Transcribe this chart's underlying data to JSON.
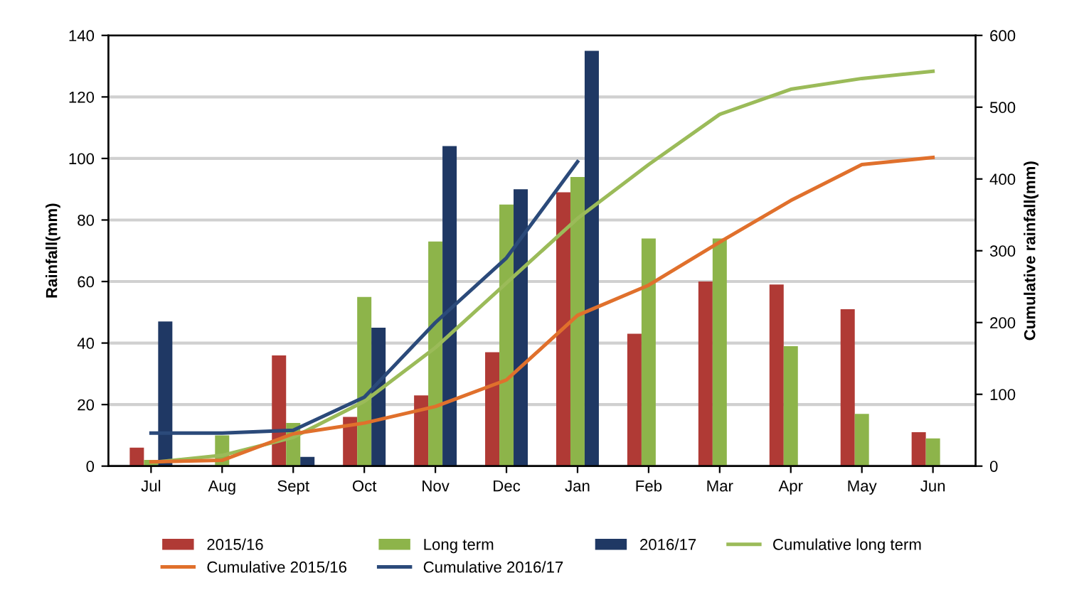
{
  "chart_data": {
    "type": "bar",
    "xlabel": null,
    "ylabel": "Rainfall(mm)",
    "y2label": "Cumulative rainfall(mm)",
    "categories": [
      "Jul",
      "Aug",
      "Sept",
      "Oct",
      "Nov",
      "Dec",
      "Jan",
      "Feb",
      "Mar",
      "Apr",
      "May",
      "Jun"
    ],
    "series": [
      {
        "name": "2015/16",
        "color": "#b03a35",
        "values": [
          6,
          0,
          36,
          16,
          23,
          37,
          89,
          43,
          60,
          59,
          51,
          11
        ]
      },
      {
        "name": "Long term",
        "color": "#8db44a",
        "values": [
          2,
          10,
          14,
          55,
          73,
          85,
          94,
          74,
          74,
          39,
          17,
          9
        ]
      },
      {
        "name": "2016/17",
        "color": "#1f3864",
        "values": [
          47,
          0,
          3,
          45,
          104,
          90,
          135,
          null,
          null,
          null,
          null,
          null
        ]
      },
      {
        "name": "Cumulative long term",
        "type": "line",
        "axis": "y2",
        "color": "#9bbb59",
        "values": [
          5,
          15,
          40,
          90,
          165,
          255,
          345,
          420,
          490,
          525,
          540,
          550
        ]
      },
      {
        "name": "Cumulative 2015/16",
        "type": "line",
        "axis": "y2",
        "color": "#e0702c",
        "values": [
          6,
          8,
          45,
          60,
          83,
          120,
          210,
          252,
          312,
          370,
          420,
          430
        ]
      },
      {
        "name": "Cumulative 2016/17",
        "type": "line",
        "axis": "y2",
        "color": "#2b4a7a",
        "values": [
          46,
          46,
          50,
          96,
          200,
          290,
          424,
          null,
          null,
          null,
          null,
          null
        ]
      }
    ],
    "ylim": [
      0,
      140
    ],
    "yticks": [
      0,
      20,
      40,
      60,
      80,
      100,
      120,
      140
    ],
    "y2lim": [
      0,
      600
    ],
    "y2ticks": [
      0,
      100,
      200,
      300,
      400,
      500,
      600
    ],
    "grid": "y",
    "legend": "bottom"
  }
}
